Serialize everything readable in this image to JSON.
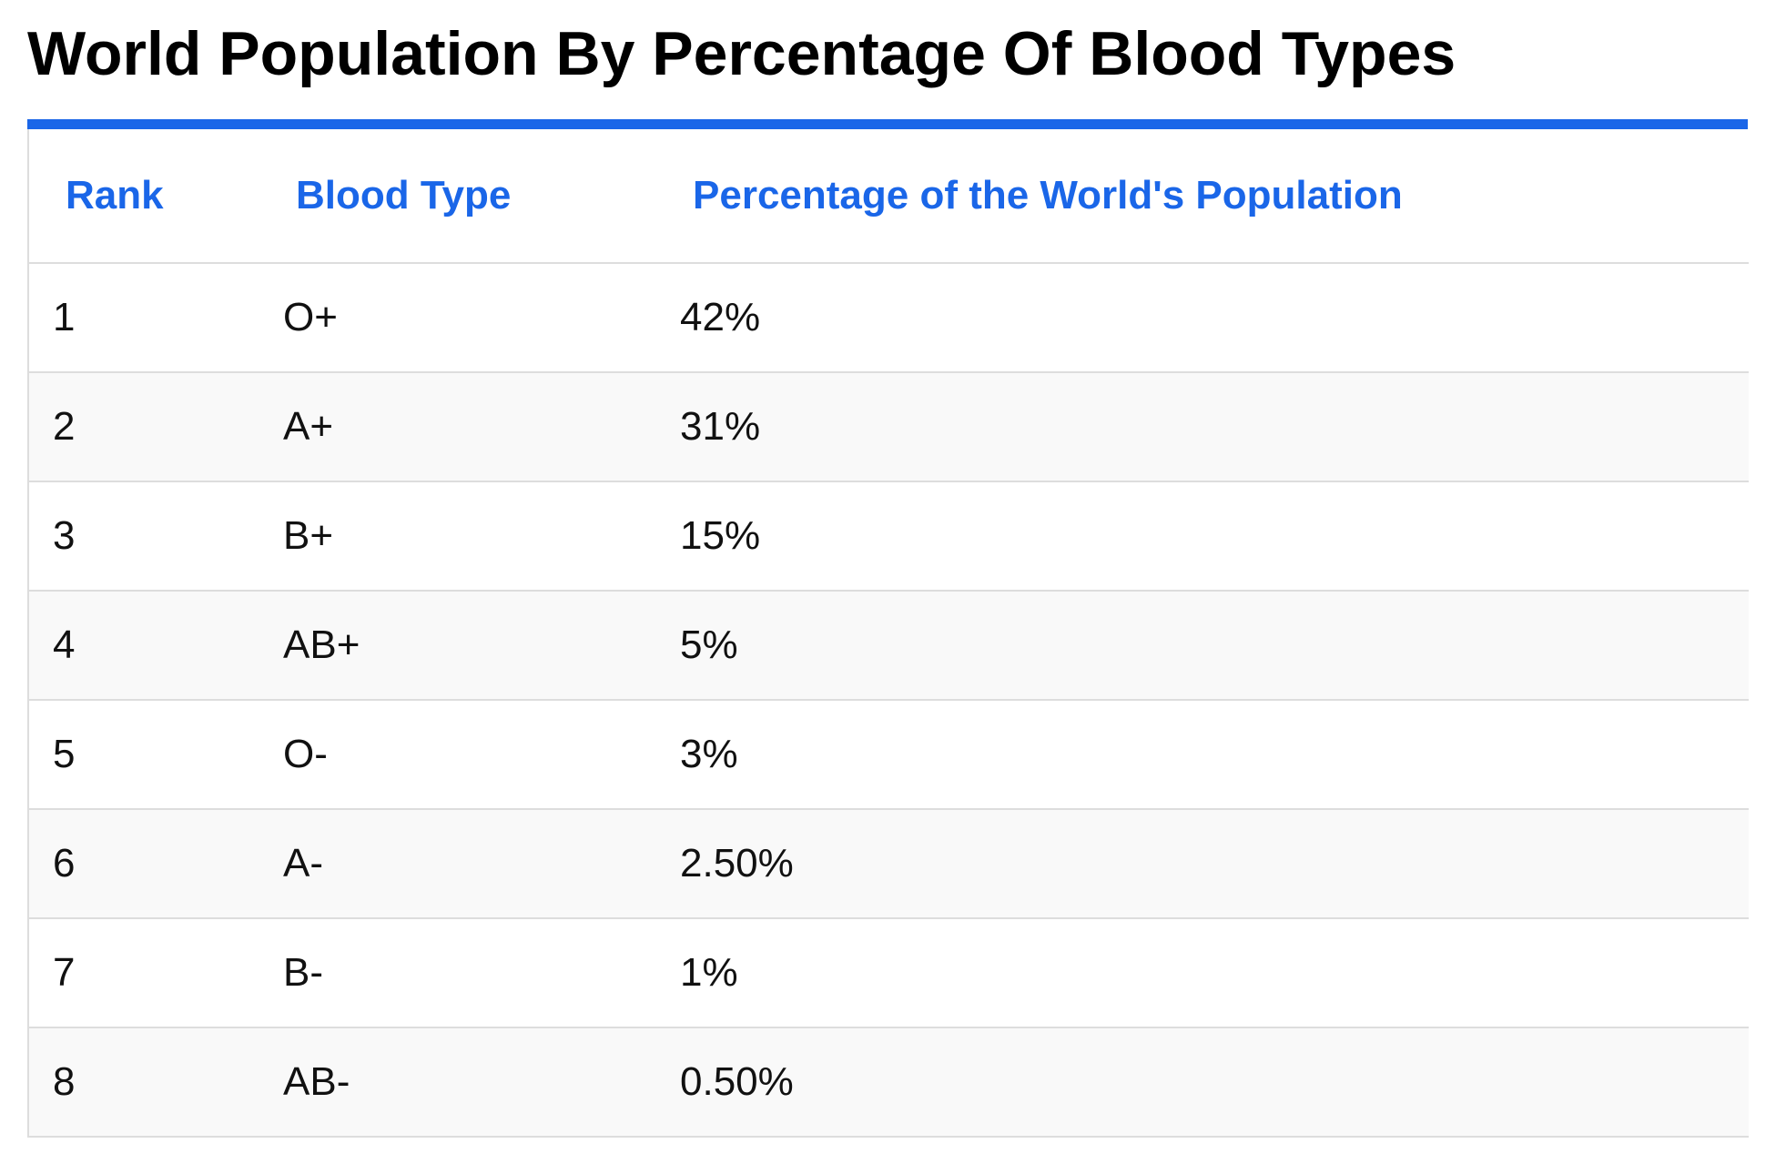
{
  "page": {
    "title": "World Population By Percentage Of Blood Types"
  },
  "table": {
    "headers": {
      "rank": "Rank",
      "blood_type": "Blood Type",
      "percentage": "Percentage of the World's Population"
    },
    "rows": [
      {
        "rank": "1",
        "blood_type": "O+",
        "percentage": "42%"
      },
      {
        "rank": "2",
        "blood_type": "A+",
        "percentage": "31%"
      },
      {
        "rank": "3",
        "blood_type": "B+",
        "percentage": "15%"
      },
      {
        "rank": "4",
        "blood_type": "AB+",
        "percentage": "5%"
      },
      {
        "rank": "5",
        "blood_type": "O-",
        "percentage": "3%"
      },
      {
        "rank": "6",
        "blood_type": "A-",
        "percentage": "2.50%"
      },
      {
        "rank": "7",
        "blood_type": "B-",
        "percentage": "1%"
      },
      {
        "rank": "8",
        "blood_type": "AB-",
        "percentage": "0.50%"
      }
    ]
  },
  "colors": {
    "accent": "#1a66e8",
    "row_stripe": "#f9f9f9",
    "border": "#dddddd"
  }
}
